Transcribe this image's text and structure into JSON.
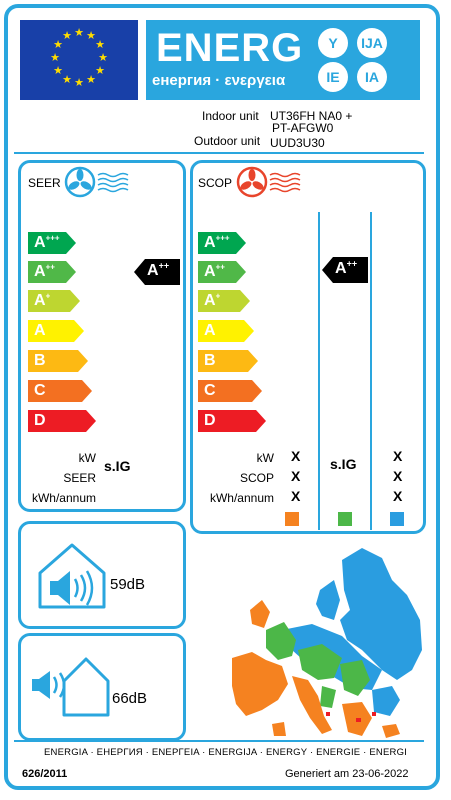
{
  "header": {
    "energy_word": "ENERG",
    "energy_subtitle": "енергия · ενεργεια",
    "lang_codes": [
      "Y",
      "IJA",
      "IE",
      "IA"
    ],
    "colors": {
      "accent": "#2aa6de",
      "eu_blue": "#1840a8",
      "eu_star": "#ffdd00"
    }
  },
  "units": {
    "indoor_label": "Indoor unit",
    "indoor_value": "UT36FH NA0  +",
    "indoor_value_2": "PT-AFGW0",
    "outdoor_label": "Outdoor unit",
    "outdoor_value": "UUD3U30"
  },
  "seer": {
    "title": "SEER",
    "icon": "fan-cold-icon",
    "classes": [
      {
        "letter": "A",
        "plus": "+++",
        "color": "#00a650"
      },
      {
        "letter": "A",
        "plus": "++",
        "color": "#50b848"
      },
      {
        "letter": "A",
        "plus": "+",
        "color": "#bed630"
      },
      {
        "letter": "A",
        "plus": "",
        "color": "#fff200"
      },
      {
        "letter": "B",
        "plus": "",
        "color": "#fdb913"
      },
      {
        "letter": "C",
        "plus": "",
        "color": "#f37021"
      },
      {
        "letter": "D",
        "plus": "",
        "color": "#ed1c24"
      }
    ],
    "rating_letter": "A",
    "rating_plus": "++",
    "kw_label": "kW",
    "seer_label": "SEER",
    "kwh_label": "kWh/annum",
    "value_text": "s.IG"
  },
  "scop": {
    "title": "SCOP",
    "icon": "fan-warm-icon",
    "rating_letter": "A",
    "rating_plus": "++",
    "kw_label": "kW",
    "scop_label": "SCOP",
    "kwh_label": "kWh/annum",
    "value_text": "s.IG",
    "x_mark": "X",
    "zone_colors": [
      "#f58220",
      "#4cb748",
      "#2a9de0"
    ]
  },
  "noise": {
    "indoor_value": "59dB",
    "outdoor_value": "66dB",
    "indoor_icon": "indoor-speaker-icon",
    "outdoor_icon": "outdoor-speaker-icon"
  },
  "map": {
    "icon": "europe-climate-map-icon"
  },
  "footer": {
    "languages": "ENERGIA · ЕНЕРГИЯ · ΕΝΕΡΓΕΙΑ · ENERGIJA · ENERGY · ENERGIE · ENERGI",
    "regulation": "626/2011",
    "generated": "Generiert am 23-06-2022"
  }
}
